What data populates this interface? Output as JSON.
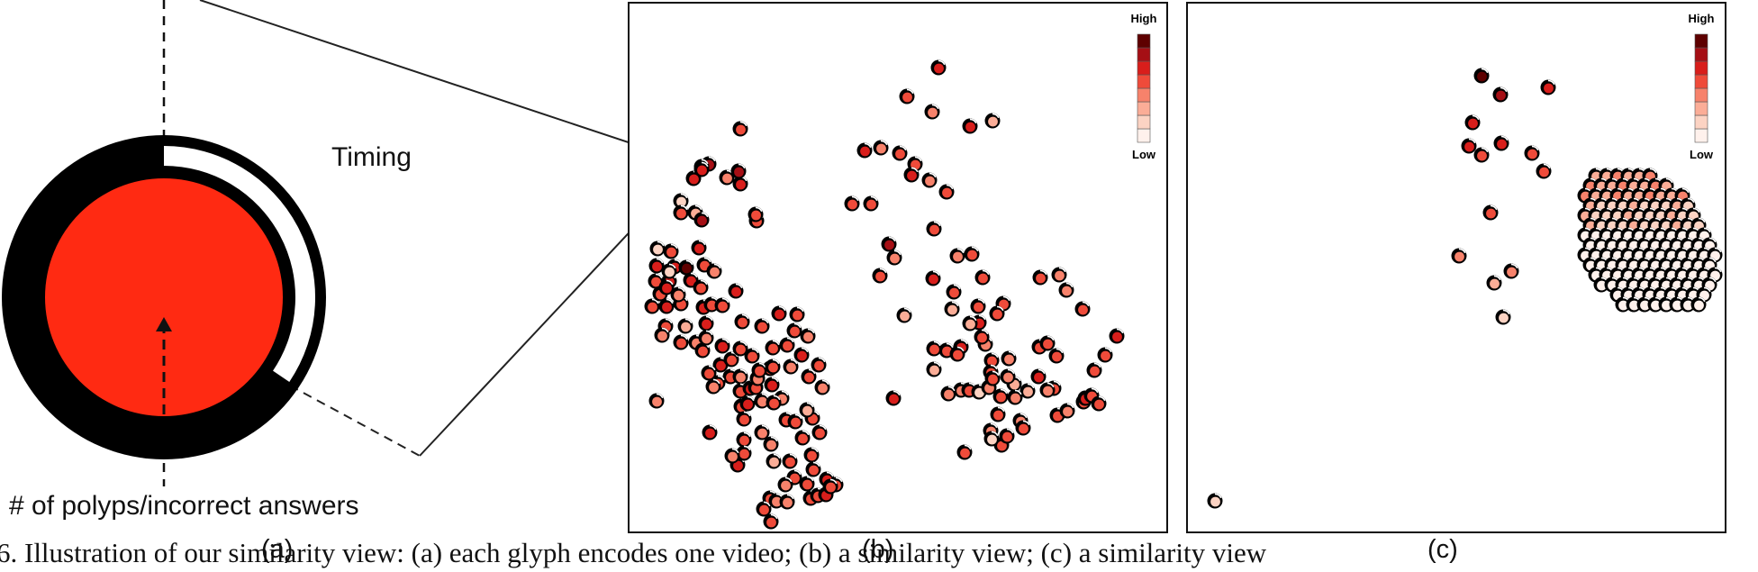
{
  "glyph": {
    "timing_label": "Timing",
    "axis_label": "# of polyps/incorrect answers",
    "label": "(a)",
    "fill_color": "#ff2a12",
    "ring_color": "#000000"
  },
  "panel_b": {
    "label": "(b)"
  },
  "panel_c": {
    "label": "(c)"
  },
  "legend": {
    "high": "High",
    "low": "Low"
  },
  "color_scale": [
    "#fff1ec",
    "#fcd3c3",
    "#fbad97",
    "#f7826b",
    "#ef4b3a",
    "#d81e1b",
    "#a50f15",
    "#5e0000"
  ],
  "caption": "6. Illustration of our similarity view: (a) each glyph encodes one video; (b) a similarity view; (c) a similarity view"
}
